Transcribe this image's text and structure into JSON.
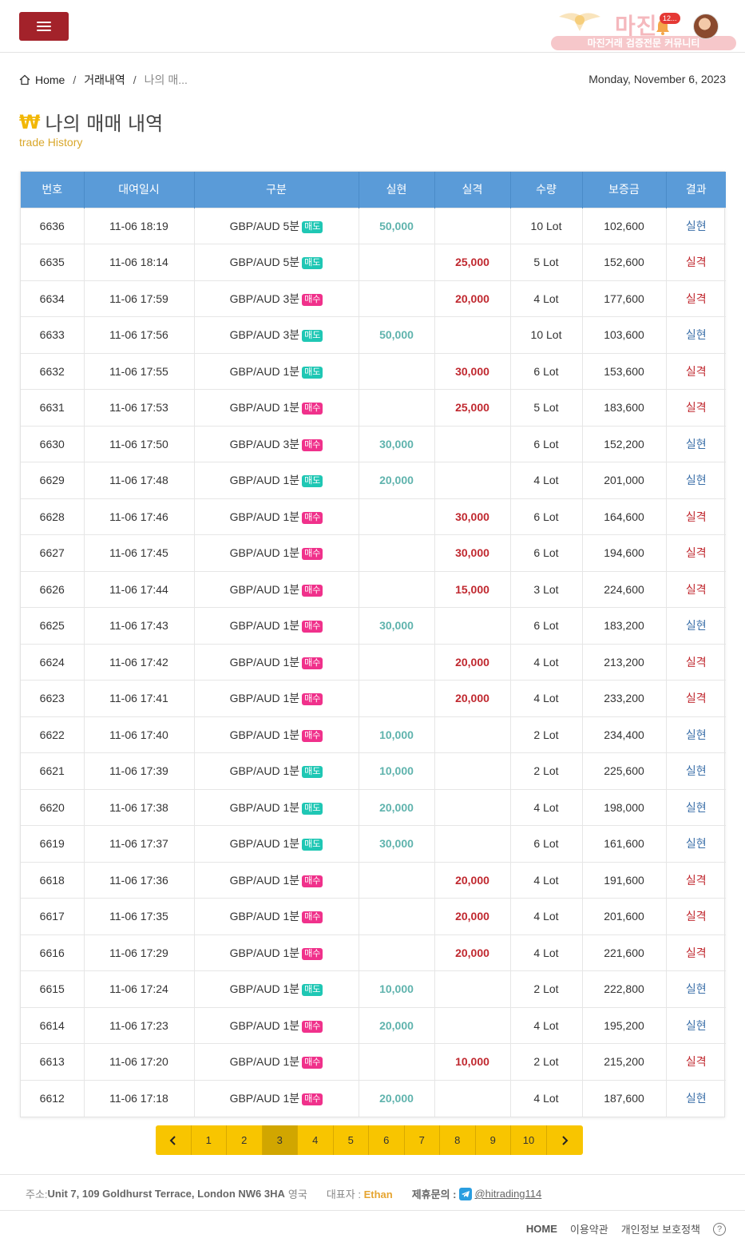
{
  "header": {
    "logo_text": "마진",
    "logo_sub": "마진거래 검증전문 커뮤니티",
    "notif_badge": "12..."
  },
  "breadcrumb": {
    "home": "Home",
    "section": "거래내역",
    "current": "나의 매..."
  },
  "date": "Monday, November 6, 2023",
  "page": {
    "currency_symbol": "₩",
    "title": "나의 매매 내역",
    "subtitle": "trade History"
  },
  "table": {
    "headers": [
      "번호",
      "대여일시",
      "구분",
      "실현",
      "실격",
      "수량",
      "보증금",
      "결과"
    ],
    "rows": [
      {
        "no": "6636",
        "time": "11-06 18:19",
        "pair": "GBP/AUD 5분",
        "side": "매도",
        "win": "50,000",
        "loss": "",
        "qty": "10 Lot",
        "deposit": "102,600",
        "result": "실현"
      },
      {
        "no": "6635",
        "time": "11-06 18:14",
        "pair": "GBP/AUD 5분",
        "side": "매도",
        "win": "",
        "loss": "25,000",
        "qty": "5 Lot",
        "deposit": "152,600",
        "result": "실격"
      },
      {
        "no": "6634",
        "time": "11-06 17:59",
        "pair": "GBP/AUD 3분",
        "side": "매수",
        "win": "",
        "loss": "20,000",
        "qty": "4 Lot",
        "deposit": "177,600",
        "result": "실격"
      },
      {
        "no": "6633",
        "time": "11-06 17:56",
        "pair": "GBP/AUD 3분",
        "side": "매도",
        "win": "50,000",
        "loss": "",
        "qty": "10 Lot",
        "deposit": "103,600",
        "result": "실현"
      },
      {
        "no": "6632",
        "time": "11-06 17:55",
        "pair": "GBP/AUD 1분",
        "side": "매도",
        "win": "",
        "loss": "30,000",
        "qty": "6 Lot",
        "deposit": "153,600",
        "result": "실격"
      },
      {
        "no": "6631",
        "time": "11-06 17:53",
        "pair": "GBP/AUD 1분",
        "side": "매수",
        "win": "",
        "loss": "25,000",
        "qty": "5 Lot",
        "deposit": "183,600",
        "result": "실격"
      },
      {
        "no": "6630",
        "time": "11-06 17:50",
        "pair": "GBP/AUD 3분",
        "side": "매수",
        "win": "30,000",
        "loss": "",
        "qty": "6 Lot",
        "deposit": "152,200",
        "result": "실현"
      },
      {
        "no": "6629",
        "time": "11-06 17:48",
        "pair": "GBP/AUD 1분",
        "side": "매도",
        "win": "20,000",
        "loss": "",
        "qty": "4 Lot",
        "deposit": "201,000",
        "result": "실현"
      },
      {
        "no": "6628",
        "time": "11-06 17:46",
        "pair": "GBP/AUD 1분",
        "side": "매수",
        "win": "",
        "loss": "30,000",
        "qty": "6 Lot",
        "deposit": "164,600",
        "result": "실격"
      },
      {
        "no": "6627",
        "time": "11-06 17:45",
        "pair": "GBP/AUD 1분",
        "side": "매수",
        "win": "",
        "loss": "30,000",
        "qty": "6 Lot",
        "deposit": "194,600",
        "result": "실격"
      },
      {
        "no": "6626",
        "time": "11-06 17:44",
        "pair": "GBP/AUD 1분",
        "side": "매수",
        "win": "",
        "loss": "15,000",
        "qty": "3 Lot",
        "deposit": "224,600",
        "result": "실격"
      },
      {
        "no": "6625",
        "time": "11-06 17:43",
        "pair": "GBP/AUD 1분",
        "side": "매수",
        "win": "30,000",
        "loss": "",
        "qty": "6 Lot",
        "deposit": "183,200",
        "result": "실현"
      },
      {
        "no": "6624",
        "time": "11-06 17:42",
        "pair": "GBP/AUD 1분",
        "side": "매수",
        "win": "",
        "loss": "20,000",
        "qty": "4 Lot",
        "deposit": "213,200",
        "result": "실격"
      },
      {
        "no": "6623",
        "time": "11-06 17:41",
        "pair": "GBP/AUD 1분",
        "side": "매수",
        "win": "",
        "loss": "20,000",
        "qty": "4 Lot",
        "deposit": "233,200",
        "result": "실격"
      },
      {
        "no": "6622",
        "time": "11-06 17:40",
        "pair": "GBP/AUD 1분",
        "side": "매수",
        "win": "10,000",
        "loss": "",
        "qty": "2 Lot",
        "deposit": "234,400",
        "result": "실현"
      },
      {
        "no": "6621",
        "time": "11-06 17:39",
        "pair": "GBP/AUD 1분",
        "side": "매도",
        "win": "10,000",
        "loss": "",
        "qty": "2 Lot",
        "deposit": "225,600",
        "result": "실현"
      },
      {
        "no": "6620",
        "time": "11-06 17:38",
        "pair": "GBP/AUD 1분",
        "side": "매도",
        "win": "20,000",
        "loss": "",
        "qty": "4 Lot",
        "deposit": "198,000",
        "result": "실현"
      },
      {
        "no": "6619",
        "time": "11-06 17:37",
        "pair": "GBP/AUD 1분",
        "side": "매도",
        "win": "30,000",
        "loss": "",
        "qty": "6 Lot",
        "deposit": "161,600",
        "result": "실현"
      },
      {
        "no": "6618",
        "time": "11-06 17:36",
        "pair": "GBP/AUD 1분",
        "side": "매수",
        "win": "",
        "loss": "20,000",
        "qty": "4 Lot",
        "deposit": "191,600",
        "result": "실격"
      },
      {
        "no": "6617",
        "time": "11-06 17:35",
        "pair": "GBP/AUD 1분",
        "side": "매수",
        "win": "",
        "loss": "20,000",
        "qty": "4 Lot",
        "deposit": "201,600",
        "result": "실격"
      },
      {
        "no": "6616",
        "time": "11-06 17:29",
        "pair": "GBP/AUD 1분",
        "side": "매수",
        "win": "",
        "loss": "20,000",
        "qty": "4 Lot",
        "deposit": "221,600",
        "result": "실격"
      },
      {
        "no": "6615",
        "time": "11-06 17:24",
        "pair": "GBP/AUD 1분",
        "side": "매도",
        "win": "10,000",
        "loss": "",
        "qty": "2 Lot",
        "deposit": "222,800",
        "result": "실현"
      },
      {
        "no": "6614",
        "time": "11-06 17:23",
        "pair": "GBP/AUD 1분",
        "side": "매수",
        "win": "20,000",
        "loss": "",
        "qty": "4 Lot",
        "deposit": "195,200",
        "result": "실현"
      },
      {
        "no": "6613",
        "time": "11-06 17:20",
        "pair": "GBP/AUD 1분",
        "side": "매수",
        "win": "",
        "loss": "10,000",
        "qty": "2 Lot",
        "deposit": "215,200",
        "result": "실격"
      },
      {
        "no": "6612",
        "time": "11-06 17:18",
        "pair": "GBP/AUD 1분",
        "side": "매수",
        "win": "20,000",
        "loss": "",
        "qty": "4 Lot",
        "deposit": "187,600",
        "result": "실현"
      }
    ]
  },
  "pagination": {
    "prev": "‹",
    "next": "›",
    "pages": [
      "1",
      "2",
      "3",
      "4",
      "5",
      "6",
      "7",
      "8",
      "9",
      "10"
    ],
    "current": "3"
  },
  "footer": {
    "address_label": "주소:",
    "address": "Unit 7, 109 Goldhurst Terrace, London NW6 3HA",
    "country": "영국",
    "rep_label": "대표자 :",
    "rep_name": "Ethan",
    "contact_label": "제휴문의 :",
    "telegram": "@hitrading114",
    "links": [
      "HOME",
      "이용약관",
      "개인정보 보호정책"
    ],
    "help": "?"
  },
  "colors": {
    "header_blue": "#5a9bd8",
    "menu_red": "#a3222a",
    "pager_yellow": "#f8c500",
    "sell_tag": "#1fc7b4",
    "buy_tag": "#f0318b",
    "win_text": "#5fb3ad",
    "loss_text": "#c0282f"
  },
  "icons": {
    "menu": "hamburger-icon",
    "home": "home-icon",
    "notification": "bell-icon",
    "telegram": "telegram-icon",
    "help": "question-circle-icon"
  }
}
